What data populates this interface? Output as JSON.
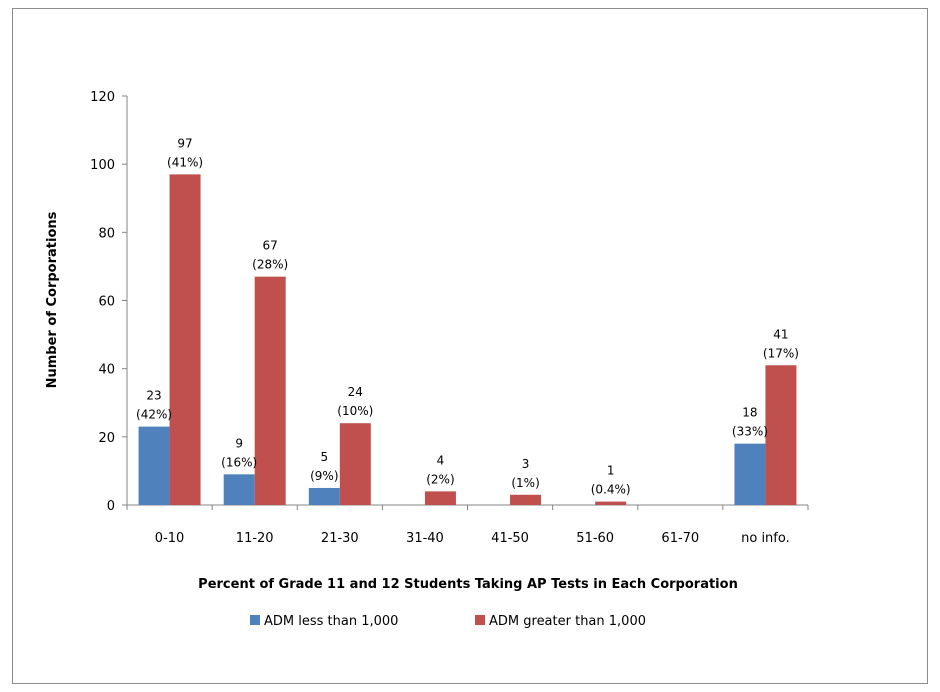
{
  "chart_data": {
    "type": "bar",
    "title": "",
    "xlabel": "Percent of Grade 11 and 12 Students Taking AP Tests in Each Corporation",
    "ylabel": "Number of Corporations",
    "ylim": [
      0,
      120
    ],
    "yticks": [
      "0",
      "20",
      "40",
      "60",
      "80",
      "100",
      "120"
    ],
    "grid": false,
    "legend_position": "bottom",
    "categories": [
      "0-10",
      "11-20",
      "21-30",
      "31-40",
      "41-50",
      "51-60",
      "61-70",
      "no info."
    ],
    "series": [
      {
        "name": "ADM less than 1,000",
        "color": "#4f81bd",
        "values": [
          23,
          9,
          5,
          0,
          0,
          0,
          0,
          18
        ],
        "labels": [
          [
            "23",
            "(42%)"
          ],
          [
            "9",
            "(16%)"
          ],
          [
            "5",
            "(9%)"
          ],
          null,
          null,
          null,
          null,
          [
            "18",
            "(33%)"
          ]
        ]
      },
      {
        "name": "ADM greater than 1,000",
        "color": "#c0504d",
        "values": [
          97,
          67,
          24,
          4,
          3,
          1,
          0,
          41
        ],
        "labels": [
          [
            "97",
            "(41%)"
          ],
          [
            "67",
            "(28%)"
          ],
          [
            "24",
            "(10%)"
          ],
          [
            "4",
            "(2%)"
          ],
          [
            "3",
            "(1%)"
          ],
          [
            "1",
            "(0.4%)"
          ],
          null,
          [
            "41",
            "(17%)"
          ]
        ]
      }
    ]
  }
}
